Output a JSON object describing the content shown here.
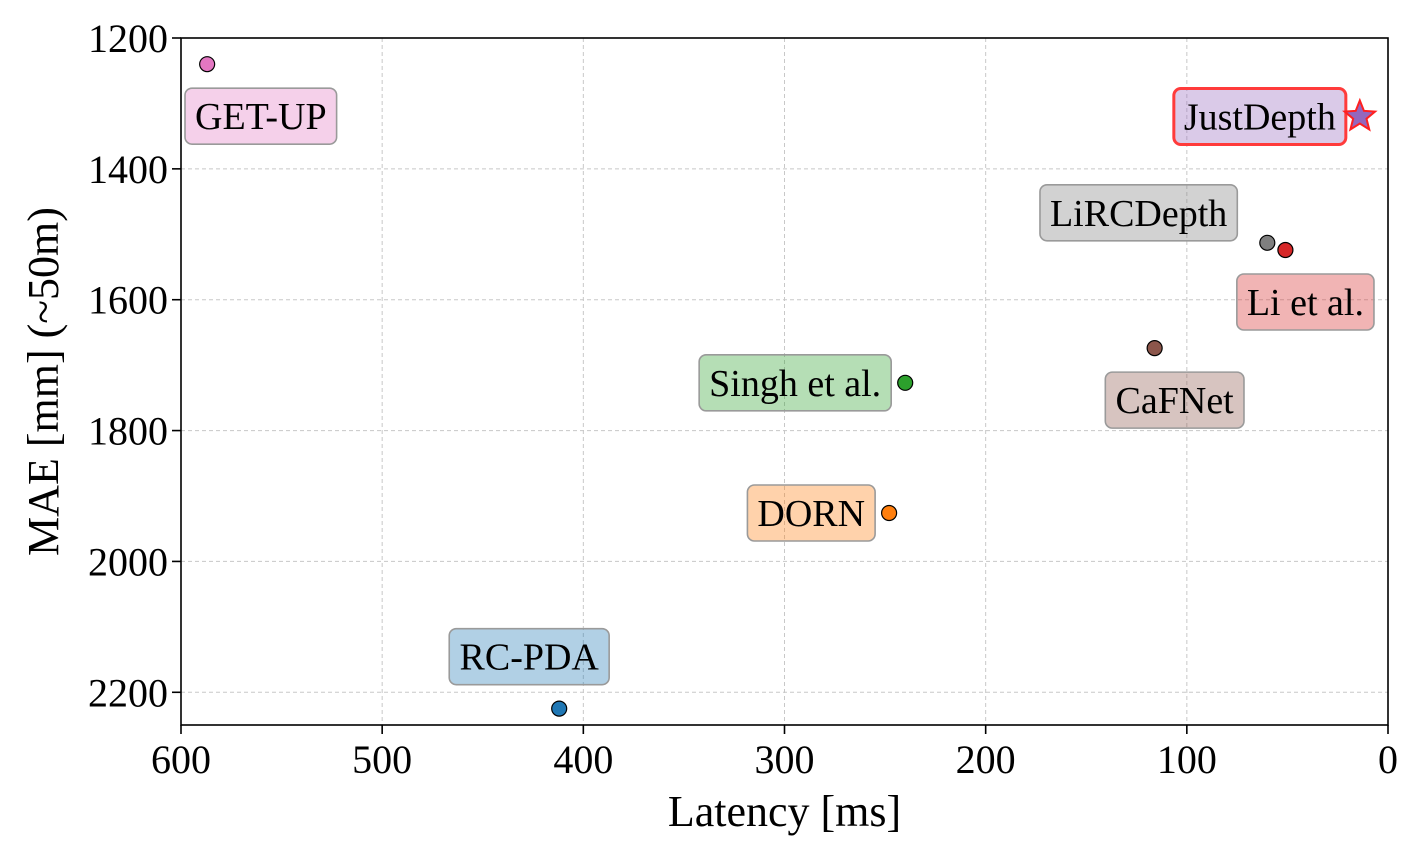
{
  "chart_data": {
    "type": "scatter",
    "xlabel": "Latency [ms]",
    "ylabel": "MAE [mm] (~50m)",
    "xlim": [
      600,
      0
    ],
    "ylim": [
      2250,
      1200
    ],
    "x_inverted": true,
    "y_inverted": true,
    "xticks": [
      600,
      500,
      400,
      300,
      200,
      100,
      0
    ],
    "yticks": [
      1200,
      1400,
      1600,
      1800,
      2000,
      2200
    ],
    "xtick_labels": [
      "600",
      "500",
      "400",
      "300",
      "200",
      "100",
      "0"
    ],
    "ytick_labels": [
      "1200",
      "1400",
      "1600",
      "1800",
      "2000",
      "2200"
    ],
    "grid": true,
    "legend": "none",
    "points": [
      {
        "label": "GET-UP",
        "x": 587,
        "y": 1240,
        "color": "#e377c2",
        "marker": "circle",
        "label_pos": "below"
      },
      {
        "label": "JustDepth",
        "x": 14,
        "y": 1320,
        "color": "#9467bd",
        "marker": "star",
        "label_pos": "left",
        "highlight": true
      },
      {
        "label": "LiRCDepth",
        "x": 60,
        "y": 1513,
        "color": "#7f7f7f",
        "marker": "circle",
        "label_pos": "upper-left"
      },
      {
        "label": "Li et al.",
        "x": 51,
        "y": 1524,
        "color": "#d62728",
        "marker": "circle",
        "label_pos": "below"
      },
      {
        "label": "CaFNet",
        "x": 116,
        "y": 1674,
        "color": "#8c564b",
        "marker": "circle",
        "label_pos": "below"
      },
      {
        "label": "Singh et al.",
        "x": 240,
        "y": 1727,
        "color": "#2ca02c",
        "marker": "circle",
        "label_pos": "left"
      },
      {
        "label": "DORN",
        "x": 248,
        "y": 1926,
        "color": "#ff7f0e",
        "marker": "circle",
        "label_pos": "left"
      },
      {
        "label": "RC-PDA",
        "x": 412,
        "y": 2225,
        "color": "#1f77b4",
        "marker": "circle",
        "label_pos": "above"
      }
    ]
  }
}
